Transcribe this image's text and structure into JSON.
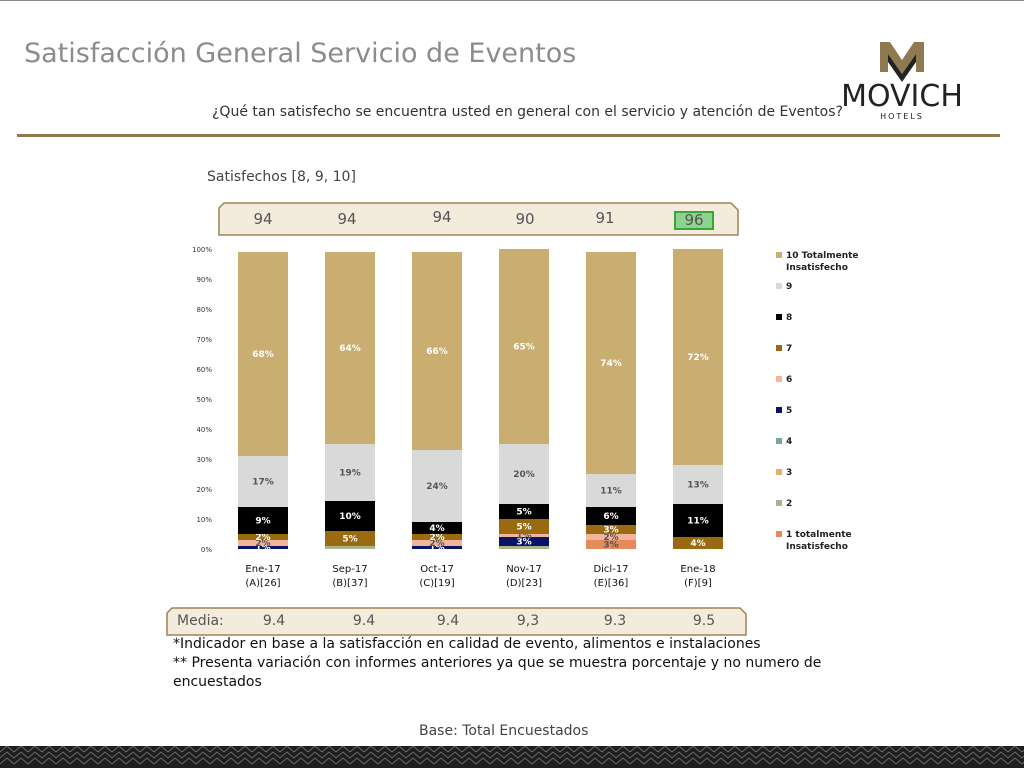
{
  "header": {
    "title": "Satisfacción General Servicio de Eventos",
    "question": "¿Qué tan satisfecho se encuentra usted en general con el servicio y atención de Eventos?",
    "logo_text": "MOVICH",
    "logo_sub": "HOTELS"
  },
  "satisfied": {
    "label": "Satisfechos [8, 9, 10]",
    "values": [
      "94",
      "94",
      "94",
      "90",
      "91",
      "96"
    ],
    "highlight_index": 5
  },
  "media": {
    "label": "Media:",
    "values": [
      "9.4",
      "9.4",
      "9.4",
      "9,3",
      "9.3",
      "9.5"
    ]
  },
  "notes": {
    "line1": "*Indicador en base a la satisfacción en calidad de evento, alimentos e instalaciones",
    "line2": "** Presenta variación con informes anteriores ya que se muestra porcentaje y no numero de",
    "line3": "encuestados"
  },
  "footer": {
    "base": "Base: Total Encuestados"
  },
  "colors": {
    "s10": "#c9ad71",
    "s9": "#d9d9d9",
    "s8": "#000000",
    "s7": "#9a6a10",
    "s6": "#f2b49a",
    "s5": "#0a1466",
    "s4": "#7aa890",
    "s3": "#e8b070",
    "s2": "#a8b48c",
    "s1": "#e58a5a",
    "gold": "#8f7a4f",
    "highlight": "#8fd18f"
  },
  "chart_data": {
    "type": "bar",
    "stacked": true,
    "categories": [
      "Ene-17\n(A)[26]",
      "Sep-17\n(B)[37]",
      "Oct-17\n(C)[19]",
      "Nov-17\n(D)[23]",
      "Dicl-17\n(E)[36]",
      "Ene-18\n(F)[9]"
    ],
    "ylim": [
      0,
      100
    ],
    "yticks": [
      "0%",
      "10%",
      "20%",
      "30%",
      "40%",
      "50%",
      "60%",
      "70%",
      "80%",
      "90%",
      "100%"
    ],
    "legend_position": "right",
    "series": [
      {
        "name": "1 totalmente Insatisfecho",
        "color": "#e58a5a",
        "values": [
          0,
          0,
          0,
          0,
          3,
          0
        ],
        "labels": [
          "",
          "",
          "",
          "",
          "3%",
          ""
        ]
      },
      {
        "name": "2",
        "color": "#a8b48c",
        "values": [
          0,
          1,
          0,
          1,
          0,
          0
        ],
        "labels": [
          "",
          "",
          "",
          "",
          "",
          ""
        ]
      },
      {
        "name": "3",
        "color": "#e8b070",
        "values": [
          0,
          0,
          0,
          0,
          0,
          0
        ],
        "labels": [
          "",
          "",
          "",
          "",
          "",
          ""
        ]
      },
      {
        "name": "4",
        "color": "#7aa890",
        "values": [
          0,
          0,
          0,
          0,
          0,
          0
        ],
        "labels": [
          "",
          "",
          "",
          "",
          "",
          ""
        ]
      },
      {
        "name": "5",
        "color": "#0a1466",
        "values": [
          1,
          0,
          1,
          3,
          0,
          0
        ],
        "labels": [
          "1%",
          "",
          "1%",
          "3%",
          "",
          ""
        ]
      },
      {
        "name": "6",
        "color": "#f2b49a",
        "values": [
          2,
          0,
          2,
          1,
          2,
          0
        ],
        "labels": [
          "2%",
          "",
          "2%",
          "1%",
          "2%",
          ""
        ]
      },
      {
        "name": "7",
        "color": "#9a6a10",
        "values": [
          2,
          5,
          2,
          5,
          3,
          4
        ],
        "labels": [
          "2%",
          "5%",
          "2%",
          "5%",
          "3%",
          "4%"
        ]
      },
      {
        "name": "8",
        "color": "#000000",
        "values": [
          9,
          10,
          4,
          5,
          6,
          11
        ],
        "labels": [
          "9%",
          "10%",
          "4%",
          "5%",
          "6%",
          "11%"
        ]
      },
      {
        "name": "9",
        "color": "#d9d9d9",
        "values": [
          17,
          19,
          24,
          20,
          11,
          13
        ],
        "labels": [
          "17%",
          "19%",
          "24%",
          "20%",
          "11%",
          "13%"
        ]
      },
      {
        "name": "10 Totalmente Insatisfecho",
        "color": "#c9ad71",
        "values": [
          68,
          64,
          66,
          65,
          74,
          72
        ],
        "labels": [
          "68%",
          "64%",
          "66%",
          "65%",
          "74%",
          "72%"
        ]
      }
    ]
  }
}
